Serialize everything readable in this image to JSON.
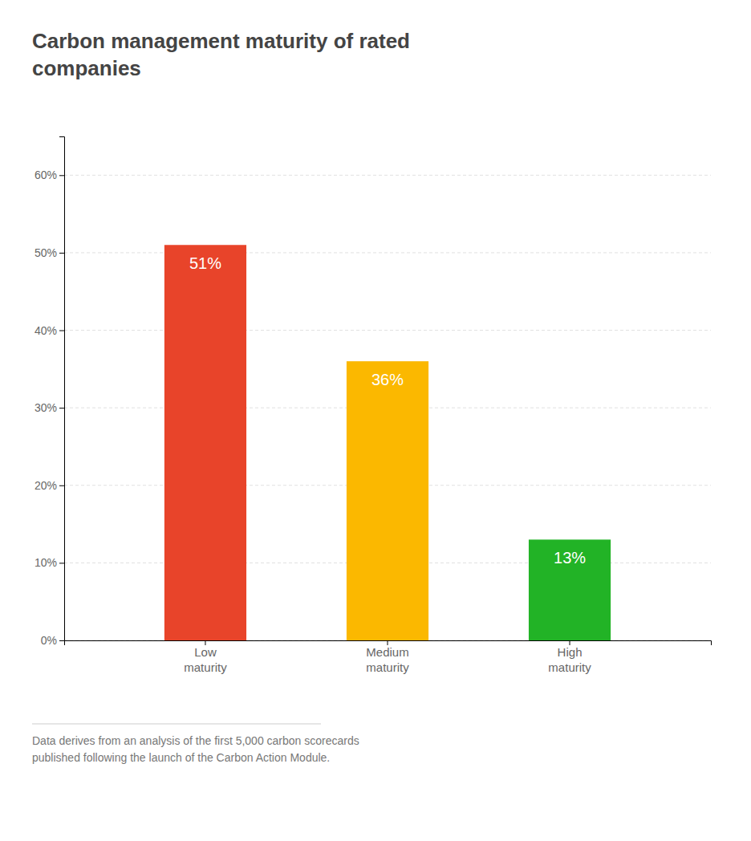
{
  "chart_data": {
    "type": "bar",
    "title": "Carbon management maturity of rated\ncompanies",
    "categories": [
      "Low\nmaturity",
      "Medium\nmaturity",
      "High\nmaturity"
    ],
    "values": [
      51,
      36,
      13
    ],
    "value_labels": [
      "51%",
      "36%",
      "13%"
    ],
    "colors": [
      "#e8442a",
      "#fbb800",
      "#22b326"
    ],
    "data_labels": true,
    "ylim": [
      0,
      65
    ],
    "yticks": [
      {
        "value": 0,
        "label": "0%"
      },
      {
        "value": 10,
        "label": "10%"
      },
      {
        "value": 20,
        "label": "20%"
      },
      {
        "value": 30,
        "label": "30%"
      },
      {
        "value": 40,
        "label": "40%"
      },
      {
        "value": 50,
        "label": "50%"
      },
      {
        "value": 60,
        "label": "60%"
      }
    ],
    "grid": true,
    "annotations": [
      "Data derives from an analysis of the first 5,000 carbon scorecards\npublished following the launch of the Carbon Action Module."
    ]
  }
}
